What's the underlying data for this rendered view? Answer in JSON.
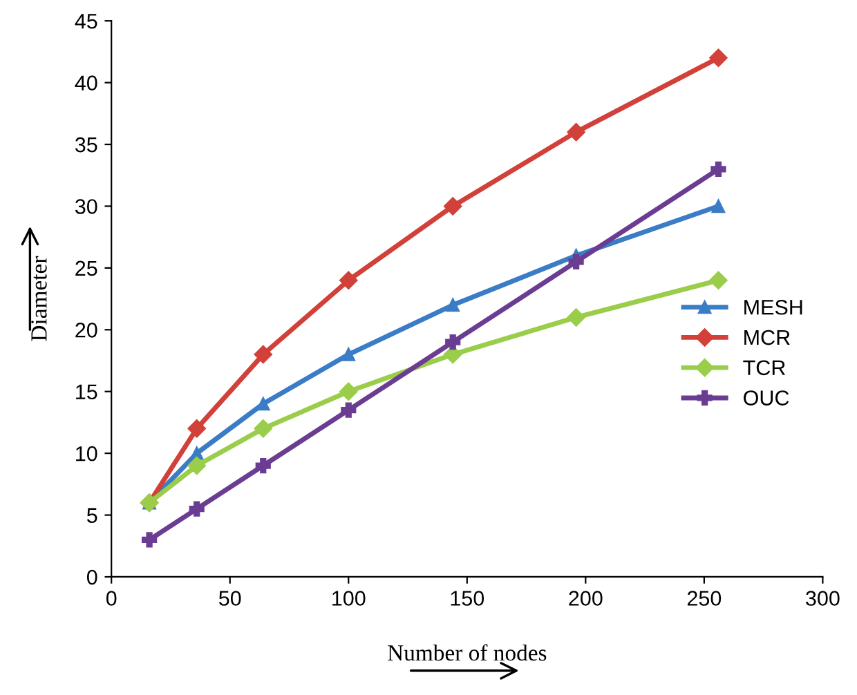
{
  "chart_data": {
    "type": "line",
    "xlabel": "Number of nodes",
    "ylabel": "Diameter",
    "x": [
      16,
      36,
      64,
      100,
      144,
      196,
      256
    ],
    "series": [
      {
        "name": "MESH",
        "color": "#3a7cc6",
        "marker": "triangle",
        "values": [
          6,
          10,
          14,
          18,
          22,
          26,
          30
        ]
      },
      {
        "name": "MCR",
        "color": "#d2403a",
        "marker": "diamond",
        "values": [
          6,
          12,
          18,
          24,
          30,
          36,
          42
        ]
      },
      {
        "name": "TCR",
        "color": "#9acd4a",
        "marker": "diamond",
        "values": [
          6,
          9,
          12,
          15,
          18,
          21,
          24
        ]
      },
      {
        "name": "OUC",
        "color": "#6a3d93",
        "marker": "cross",
        "values": [
          3,
          5.5,
          9,
          13.5,
          19,
          25.5,
          33
        ]
      }
    ],
    "xlim": [
      0,
      300
    ],
    "xticks": [
      0,
      50,
      100,
      150,
      200,
      250,
      300
    ],
    "ylim": [
      0,
      45
    ],
    "yticks": [
      0,
      5,
      10,
      15,
      20,
      25,
      30,
      35,
      40,
      45
    ],
    "grid": false,
    "legend": "right"
  }
}
